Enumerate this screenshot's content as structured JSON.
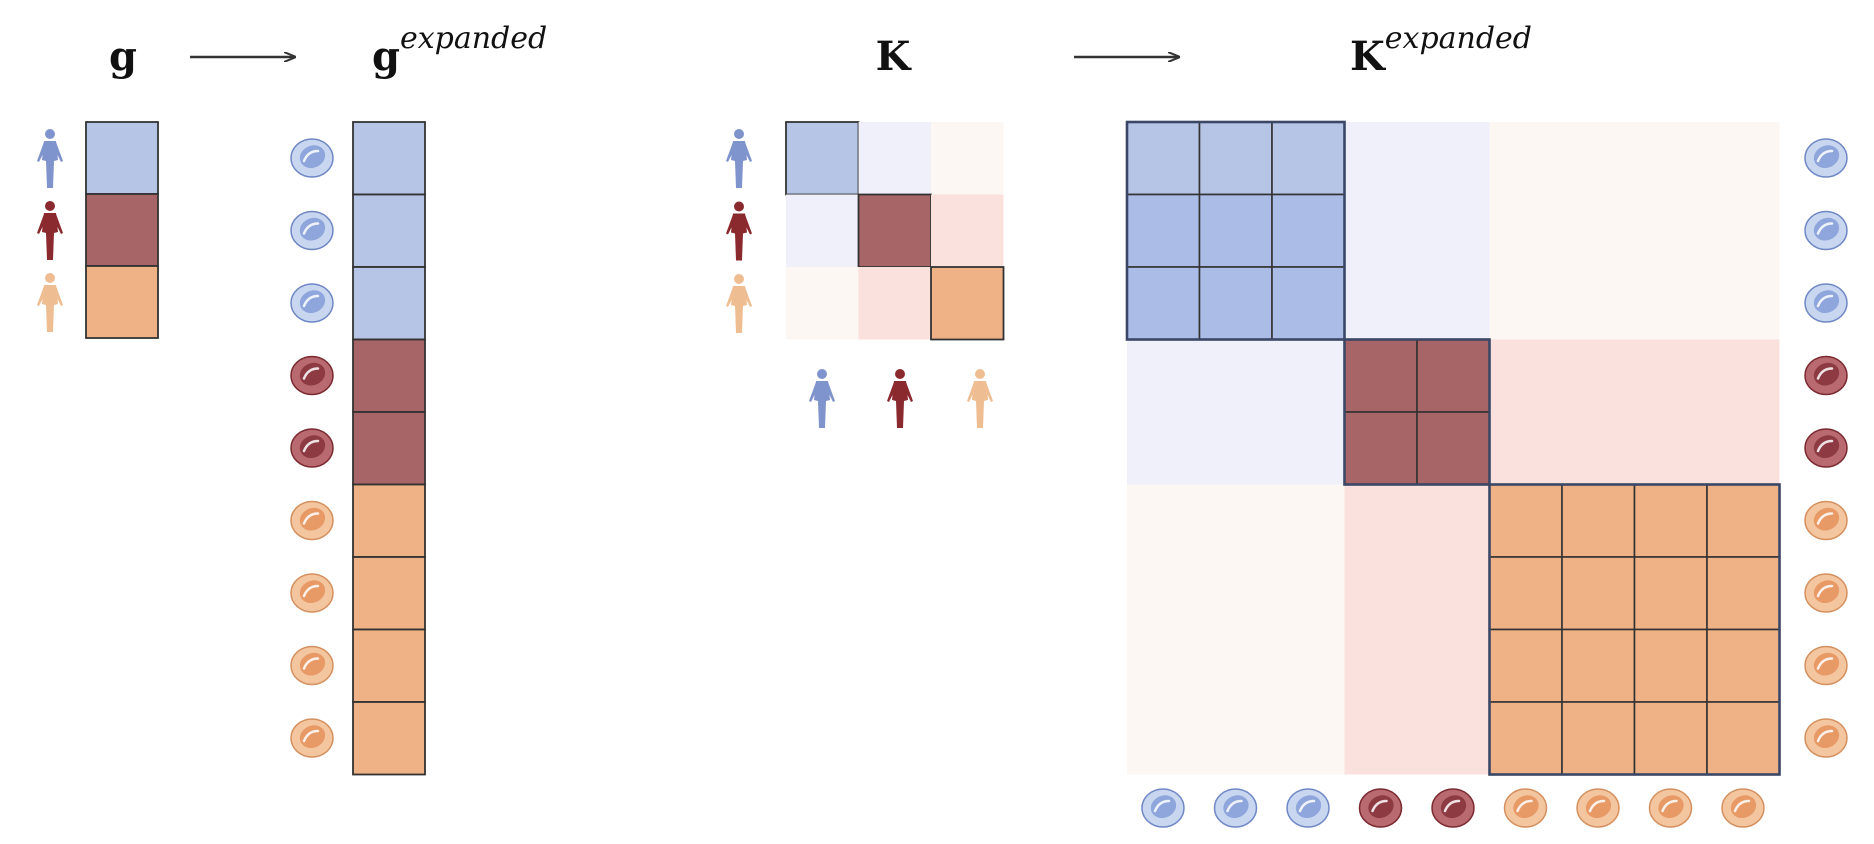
{
  "titles": {
    "g": "g",
    "g_expanded_base": "g",
    "g_expanded_sup": "expanded",
    "k": "K",
    "k_expanded_base": "K",
    "k_expanded_sup": "expanded"
  },
  "colors": {
    "group_a": "#b6c5e6",
    "group_a_dark": "#abbde6",
    "group_b": "#a86567",
    "group_c": "#eeb286",
    "person_a": "#7f93cc",
    "person_b": "#8a2a2e",
    "person_c": "#efbd92",
    "off_ab": "#f0f0fb",
    "off_ac": "#fdf7f3",
    "off_bc": "#fbe1dd",
    "cell_border": "#333333",
    "block_border": "#3a4766",
    "arrow": "#333333"
  },
  "groups": [
    {
      "id": "a",
      "icon": "person-icon",
      "cell_icon": "cell-icon",
      "count": 3
    },
    {
      "id": "b",
      "icon": "person-icon",
      "cell_icon": "cell-icon",
      "count": 2
    },
    {
      "id": "c",
      "icon": "person-icon",
      "cell_icon": "cell-icon",
      "count": 4
    }
  ]
}
